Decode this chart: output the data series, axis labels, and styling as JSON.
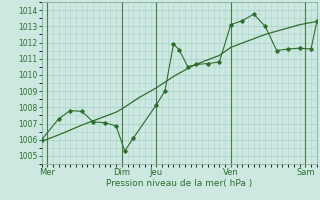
{
  "xlabel": "Pression niveau de la mer( hPa )",
  "bg_color": "#cce8e0",
  "grid_color": "#aad4cc",
  "line_color": "#2d6e2d",
  "xlim": [
    0,
    96
  ],
  "ylim": [
    1004.5,
    1014.5
  ],
  "yticks": [
    1005,
    1006,
    1007,
    1008,
    1009,
    1010,
    1011,
    1012,
    1013,
    1014
  ],
  "day_positions": [
    2,
    28,
    40,
    66,
    92
  ],
  "day_labels": [
    "Mer",
    "Dim",
    "Jeu",
    "Ven",
    "Sam"
  ],
  "smooth_x": [
    0,
    6,
    14,
    20,
    26,
    28,
    34,
    40,
    46,
    52,
    56,
    62,
    66,
    72,
    78,
    84,
    90,
    96
  ],
  "smooth_y": [
    1005.9,
    1006.3,
    1006.9,
    1007.3,
    1007.7,
    1007.9,
    1008.6,
    1009.2,
    1009.9,
    1010.5,
    1010.8,
    1011.2,
    1011.7,
    1012.1,
    1012.5,
    1012.8,
    1013.1,
    1013.3
  ],
  "detail_x": [
    0,
    6,
    10,
    14,
    18,
    22,
    26,
    29,
    32,
    40,
    43,
    46,
    48,
    51,
    54,
    58,
    62,
    66,
    70,
    74,
    78,
    82,
    86,
    90,
    94,
    96
  ],
  "detail_y": [
    1006.0,
    1007.3,
    1007.8,
    1007.75,
    1007.1,
    1007.05,
    1006.85,
    1005.3,
    1006.1,
    1008.15,
    1009.0,
    1011.9,
    1011.55,
    1010.5,
    1010.65,
    1010.7,
    1010.8,
    1013.1,
    1013.35,
    1013.75,
    1013.0,
    1011.5,
    1011.6,
    1011.65,
    1011.6,
    1013.3
  ]
}
